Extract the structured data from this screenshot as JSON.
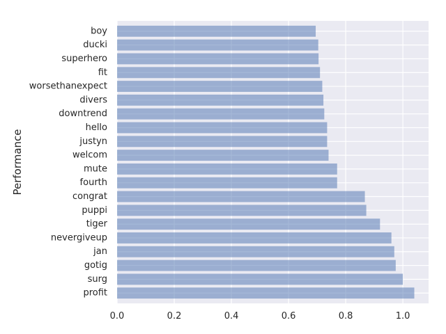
{
  "chart_data": {
    "type": "bar",
    "orientation": "horizontal",
    "title": "",
    "xlabel": "",
    "ylabel": "Performance",
    "xlim": [
      0,
      1.09
    ],
    "x_ticks": [
      0.0,
      0.2,
      0.4,
      0.6,
      0.8,
      1.0
    ],
    "x_tick_labels": [
      "0.0",
      "0.2",
      "0.4",
      "0.6",
      "0.8",
      "1.0"
    ],
    "grid": true,
    "colors": {
      "background": "#eaeaf2",
      "bar": "#4c72b0",
      "bar_opacity": 0.5,
      "grid": "#ffffff"
    },
    "categories": [
      "profit",
      "surg",
      "gotig",
      "jan",
      "nevergiveup",
      "tiger",
      "puppi",
      "congrat",
      "fourth",
      "mute",
      "welcom",
      "justyn",
      "hello",
      "downtrend",
      "divers",
      "worsethanexpect",
      "fit",
      "superhero",
      "ducki",
      "boy"
    ],
    "values": [
      1.04,
      1.0,
      0.975,
      0.97,
      0.96,
      0.92,
      0.872,
      0.867,
      0.77,
      0.77,
      0.74,
      0.735,
      0.735,
      0.725,
      0.722,
      0.718,
      0.71,
      0.705,
      0.704,
      0.695
    ]
  }
}
